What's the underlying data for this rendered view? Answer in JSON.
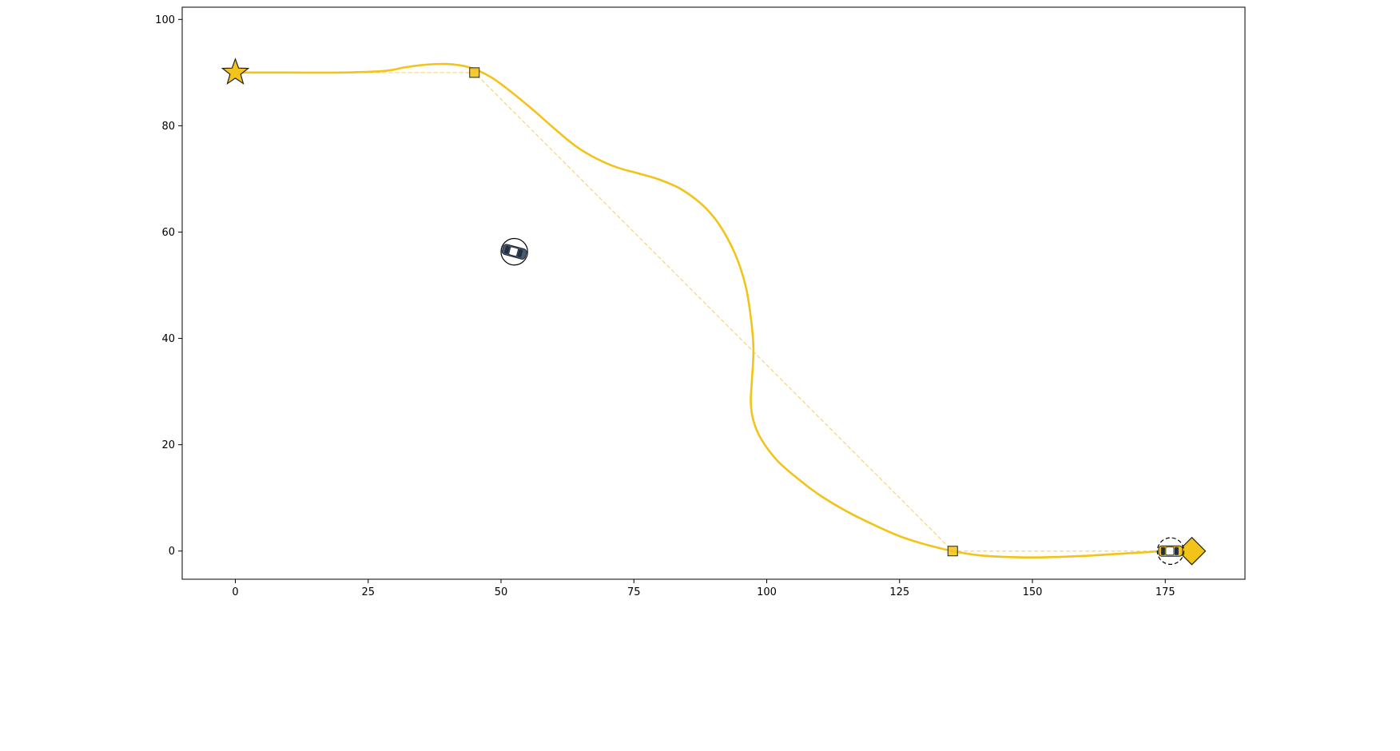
{
  "chart_data": {
    "type": "line",
    "title": "",
    "xlabel": "",
    "ylabel": "",
    "xlim": [
      -10,
      190
    ],
    "ylim": [
      -5.3,
      102.3
    ],
    "xticks": [
      0,
      25,
      50,
      75,
      100,
      125,
      150,
      175
    ],
    "yticks": [
      0,
      20,
      40,
      60,
      80,
      100
    ],
    "grid": false,
    "legend": "none",
    "colors": {
      "path": "#f2c318",
      "reference": "#f8d878",
      "marker_fill": "#f2c318",
      "marker_edge": "#222222",
      "obstacle_car": "#4a5a73"
    },
    "series": [
      {
        "role": "planned-trajectory",
        "x": [
          0,
          10,
          20,
          28,
          32,
          36,
          40,
          44,
          48,
          52,
          56,
          60,
          64,
          68,
          72,
          76,
          80,
          84,
          88,
          91,
          94,
          96,
          97,
          97.5,
          97.2,
          97,
          97.5,
          99,
          102,
          106,
          110,
          115,
          120,
          125,
          130,
          135,
          140,
          145,
          150,
          155,
          160,
          165,
          170,
          175,
          177
        ],
        "y": [
          90,
          90,
          90,
          90.3,
          91,
          91.5,
          91.6,
          91,
          89.2,
          86.3,
          83,
          79.5,
          76.2,
          73.8,
          72.1,
          71,
          69.8,
          68,
          65,
          61.5,
          56,
          50,
          44,
          38,
          32,
          28,
          24.5,
          21,
          17,
          13.5,
          10.5,
          7.5,
          5,
          2.8,
          1.2,
          0,
          -0.8,
          -1.1,
          -1.2,
          -1.1,
          -0.9,
          -0.6,
          -0.3,
          0,
          0
        ]
      },
      {
        "role": "reference-waypoints",
        "x": [
          0,
          45,
          135,
          177
        ],
        "y": [
          90,
          90,
          0,
          0
        ]
      }
    ],
    "markers": [
      {
        "kind": "start",
        "shape": "star",
        "x": 0,
        "y": 90
      },
      {
        "kind": "waypoint",
        "shape": "square",
        "x": 45,
        "y": 90
      },
      {
        "kind": "waypoint",
        "shape": "square",
        "x": 135,
        "y": 0
      },
      {
        "kind": "goal",
        "shape": "diamond",
        "x": 180,
        "y": 0
      },
      {
        "kind": "obstacle-vehicle",
        "shape": "car-in-circle",
        "x": 52.5,
        "y": 56.3,
        "radius": 2.5,
        "heading_deg": -15,
        "color": "#4a5a73"
      },
      {
        "kind": "ego-vehicle",
        "shape": "car-in-dashed-circle",
        "x": 176,
        "y": 0,
        "radius": 2.5,
        "heading_deg": 0,
        "color": "#f2c318"
      }
    ]
  }
}
